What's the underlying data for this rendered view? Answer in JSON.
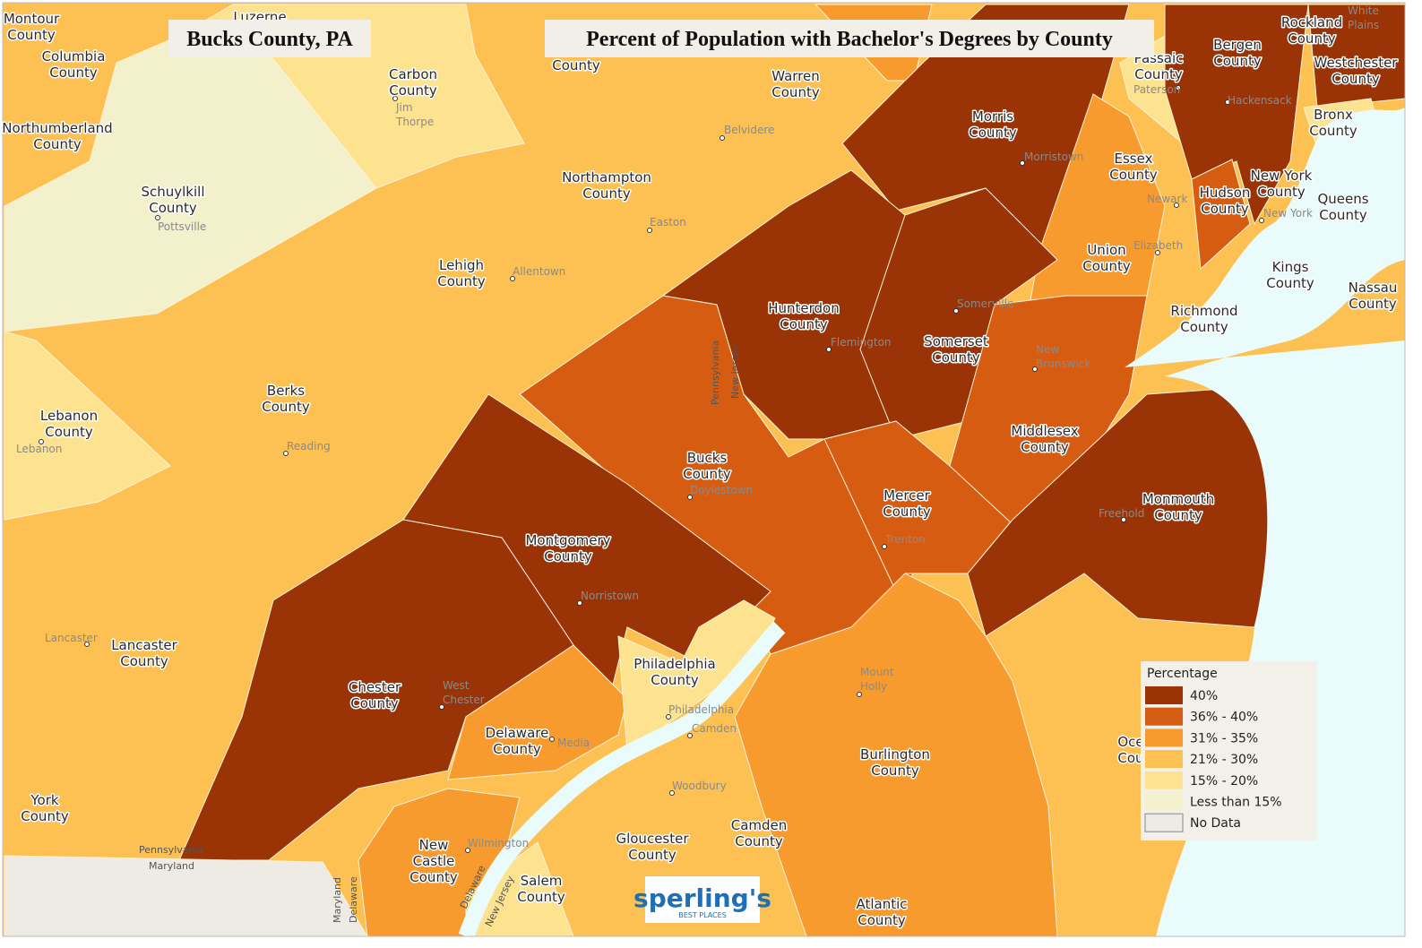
{
  "header": {
    "left_title": "Bucks County, PA",
    "title": "Percent of Population with Bachelor's Degrees by County"
  },
  "legend": {
    "title": "Percentage",
    "items": [
      {
        "label": "40%",
        "color": "#9a3406"
      },
      {
        "label": "36% - 40%",
        "color": "#d65c12"
      },
      {
        "label": "31% - 35%",
        "color": "#f79b2e"
      },
      {
        "label": "21% - 30%",
        "color": "#fdc153"
      },
      {
        "label": "15% - 20%",
        "color": "#fde390"
      },
      {
        "label": "Less than 15%",
        "color": "#f3f1cb"
      },
      {
        "label": "No Data",
        "color": "#eeebe5"
      }
    ]
  },
  "counties": [
    [
      "Montour",
      "County"
    ],
    [
      "Luzerne"
    ],
    [
      "Columbia",
      "County"
    ],
    [
      "Northumberland",
      "County"
    ],
    [
      "Schuylkill",
      "County"
    ],
    [
      "Carbon",
      "County"
    ],
    [
      "County"
    ],
    [
      "Warren",
      "County"
    ],
    [
      "Morris",
      "County"
    ],
    [
      "Passaic",
      "County"
    ],
    [
      "Bergen",
      "County"
    ],
    [
      "Rockland",
      "County"
    ],
    [
      "Westchester",
      "County"
    ],
    [
      "Bronx",
      "County"
    ],
    [
      "Essex",
      "County"
    ],
    [
      "Hudson",
      "County"
    ],
    [
      "New York",
      "County"
    ],
    [
      "Queens",
      "County"
    ],
    [
      "Kings",
      "County"
    ],
    [
      "Nassau",
      "County"
    ],
    [
      "Richmond",
      "County"
    ],
    [
      "Union",
      "County"
    ],
    [
      "Northampton",
      "County"
    ],
    [
      "Lehigh",
      "County"
    ],
    [
      "Berks",
      "County"
    ],
    [
      "Lebanon",
      "County"
    ],
    [
      "Hunterdon",
      "County"
    ],
    [
      "Somerset",
      "County"
    ],
    [
      "Middlesex",
      "County"
    ],
    [
      "Bucks",
      "County"
    ],
    [
      "Mercer",
      "County"
    ],
    [
      "Monmouth",
      "County"
    ],
    [
      "Montgomery",
      "County"
    ],
    [
      "Lancaster",
      "County"
    ],
    [
      "Chester",
      "County"
    ],
    [
      "Philadelphia",
      "County"
    ],
    [
      "Delaware",
      "County"
    ],
    [
      "Burlington",
      "County"
    ],
    [
      "York",
      "County"
    ],
    [
      "New",
      "Castle",
      "County"
    ],
    [
      "Gloucester",
      "County"
    ],
    [
      "Camden",
      "County"
    ],
    [
      "Salem",
      "County"
    ],
    [
      "Atlantic",
      "County"
    ],
    [
      "Oce",
      "Cou"
    ]
  ],
  "cities": [
    [
      "Jim",
      "Thorpe"
    ],
    [
      "Pottsville"
    ],
    [
      "Belvidere"
    ],
    [
      "Easton"
    ],
    [
      "Allentown"
    ],
    [
      "Morristown"
    ],
    [
      "Paterson"
    ],
    [
      "Hackensack"
    ],
    [
      "White",
      "Plains"
    ],
    [
      "Newark"
    ],
    [
      "New York"
    ],
    [
      "Elizabeth"
    ],
    [
      "Somerville"
    ],
    [
      "Flemington"
    ],
    [
      "New",
      "Brunswick"
    ],
    [
      "Reading"
    ],
    [
      "Lebanon"
    ],
    [
      "Doylestown"
    ],
    [
      "Trenton"
    ],
    [
      "Freehold"
    ],
    [
      "Norristown"
    ],
    [
      "Lancaster"
    ],
    [
      "West",
      "Chester"
    ],
    [
      "Media"
    ],
    [
      "Philadelphia"
    ],
    [
      "Camden"
    ],
    [
      "Mount",
      "Holly"
    ],
    [
      "Woodbury"
    ],
    [
      "Wilmington"
    ]
  ],
  "boundaries": [
    "Pennsylvania",
    "Maryland",
    "Maryland",
    "Delaware",
    "Pennsylvania",
    "New Jersey",
    "Delaware",
    "New Jersey"
  ],
  "logo": {
    "name": "sperling's",
    "tagline": "BEST PLACES"
  }
}
